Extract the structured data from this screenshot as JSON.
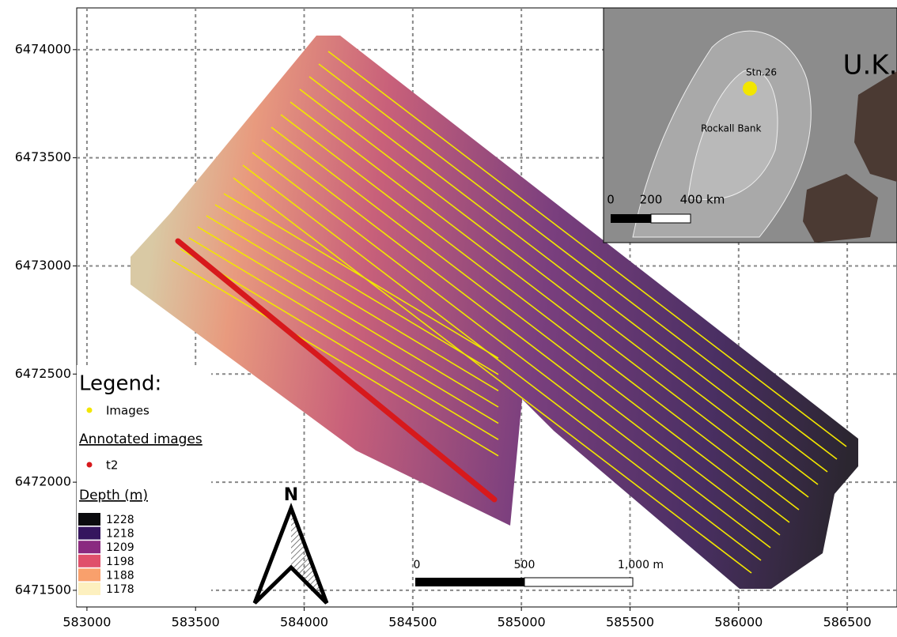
{
  "map": {
    "x_axis": {
      "lim": [
        582953,
        586729
      ],
      "ticks": [
        583000,
        583500,
        584000,
        584500,
        585000,
        585500,
        586000,
        586500
      ]
    },
    "y_axis": {
      "lim": [
        6471423,
        6474193
      ],
      "ticks": [
        6471500,
        6472000,
        6472500,
        6473000,
        6473500,
        6474000
      ]
    },
    "grid": true
  },
  "legend": {
    "title": "Legend:",
    "images": {
      "label": "Images",
      "color": "#f2e600"
    },
    "annotated_title": "Annotated images",
    "annotated": {
      "label": "t2",
      "color": "#d7191c"
    },
    "depth_title": "Depth (m)",
    "depth": [
      {
        "value": 1228,
        "color": "#0b0b0e"
      },
      {
        "value": 1218,
        "color": "#35155e"
      },
      {
        "value": 1209,
        "color": "#8a2a80"
      },
      {
        "value": 1198,
        "color": "#e0506b"
      },
      {
        "value": 1188,
        "color": "#f9a06c"
      },
      {
        "value": 1178,
        "color": "#fdf0bf"
      }
    ]
  },
  "north": "N",
  "scale_bar": {
    "labels": [
      "0",
      "500",
      "1,000 m"
    ]
  },
  "inset": {
    "station": "Stn.26",
    "bank": "Rockall Bank",
    "country": "U.K.",
    "scale_labels": [
      "0",
      "200",
      "400 km"
    ]
  }
}
